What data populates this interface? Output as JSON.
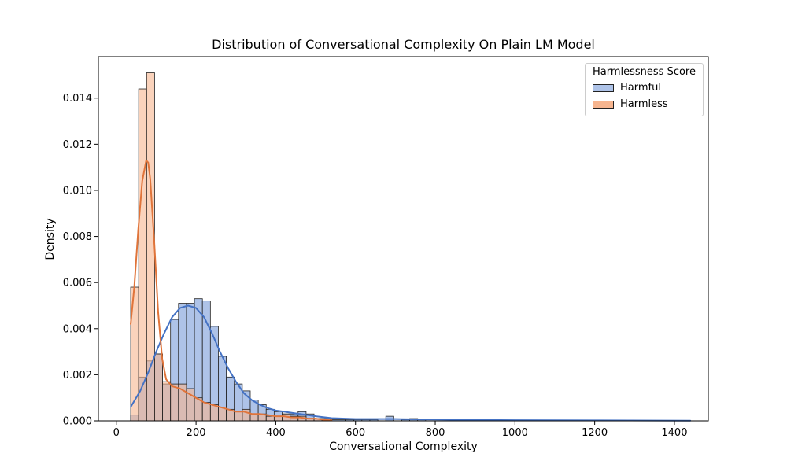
{
  "chart_data": {
    "type": "histogram",
    "title": "Distribution of Conversational Complexity On Plain LM Model",
    "xlabel": "Conversational Complexity",
    "ylabel": "Density",
    "xlim": [
      -45,
      1485
    ],
    "ylim": [
      0,
      0.0158
    ],
    "xticks": [
      0,
      200,
      400,
      600,
      800,
      1000,
      1200,
      1400
    ],
    "yticks": [
      0.0,
      0.002,
      0.004,
      0.006,
      0.008,
      0.01,
      0.012,
      0.014
    ],
    "ytick_labels": [
      "0.000",
      "0.002",
      "0.004",
      "0.006",
      "0.008",
      "0.010",
      "0.012",
      "0.014"
    ],
    "bin_width": 20,
    "bin_start": 36,
    "grid": false,
    "legend": {
      "title": "Harmlessness Score",
      "placement": "top-right"
    },
    "series": [
      {
        "name": "Harmful",
        "color": "#4472c4",
        "fill": "#aec3e8",
        "bins": [
          [
            36,
            0.00025
          ],
          [
            56,
            0.0019
          ],
          [
            76,
            0.0026
          ],
          [
            96,
            0.0029
          ],
          [
            116,
            0.0016
          ],
          [
            136,
            0.0044
          ],
          [
            156,
            0.0051
          ],
          [
            176,
            0.0051
          ],
          [
            196,
            0.0053
          ],
          [
            216,
            0.0052
          ],
          [
            236,
            0.0041
          ],
          [
            256,
            0.0028
          ],
          [
            276,
            0.0019
          ],
          [
            296,
            0.0016
          ],
          [
            316,
            0.0013
          ],
          [
            336,
            0.0009
          ],
          [
            356,
            0.0007
          ],
          [
            376,
            0.0005
          ],
          [
            396,
            0.0004
          ],
          [
            416,
            0.0003
          ],
          [
            436,
            0.0003
          ],
          [
            456,
            0.0004
          ],
          [
            476,
            0.0003
          ],
          [
            496,
            0.0001
          ],
          [
            516,
            0.0001
          ],
          [
            536,
            5e-05
          ],
          [
            556,
            5e-05
          ],
          [
            576,
            5e-05
          ],
          [
            596,
            5e-05
          ],
          [
            616,
            5e-05
          ],
          [
            636,
            5e-05
          ],
          [
            676,
            0.0002
          ],
          [
            716,
            5e-05
          ],
          [
            736,
            0.0001
          ],
          [
            756,
            5e-05
          ]
        ],
        "kde": {
          "x": [
            36,
            60,
            80,
            100,
            120,
            140,
            160,
            180,
            200,
            220,
            240,
            260,
            280,
            300,
            320,
            340,
            360,
            380,
            400,
            420,
            440,
            460,
            480,
            500,
            540,
            600,
            700,
            800,
            900,
            1000,
            1200,
            1440
          ],
          "y": [
            0.0006,
            0.0013,
            0.0021,
            0.003,
            0.0038,
            0.0045,
            0.0049,
            0.005,
            0.0049,
            0.0045,
            0.0038,
            0.003,
            0.0023,
            0.0017,
            0.0012,
            0.0009,
            0.0007,
            0.00055,
            0.00045,
            0.0004,
            0.00035,
            0.0003,
            0.00025,
            0.0002,
            0.00012,
            8e-05,
            8e-05,
            6e-05,
            4e-05,
            3e-05,
            2e-05,
            1e-05
          ]
        }
      },
      {
        "name": "Harmless",
        "color": "#e0743a",
        "fill": "#f7b58f",
        "bins": [
          [
            36,
            0.0058
          ],
          [
            56,
            0.0144
          ],
          [
            76,
            0.0151
          ],
          [
            96,
            0.0029
          ],
          [
            116,
            0.0017
          ],
          [
            136,
            0.0016
          ],
          [
            156,
            0.0016
          ],
          [
            176,
            0.0014
          ],
          [
            196,
            0.001
          ],
          [
            216,
            0.0008
          ],
          [
            236,
            0.0007
          ],
          [
            256,
            0.0006
          ],
          [
            276,
            0.0005
          ],
          [
            296,
            0.0004
          ],
          [
            316,
            0.0005
          ],
          [
            336,
            0.0003
          ],
          [
            356,
            0.0003
          ],
          [
            376,
            0.0002
          ],
          [
            396,
            0.0002
          ],
          [
            416,
            0.0003
          ],
          [
            436,
            0.0002
          ],
          [
            456,
            0.0002
          ],
          [
            476,
            0.0001
          ],
          [
            496,
            0.0001
          ]
        ],
        "kde": {
          "x": [
            36,
            45,
            55,
            65,
            75,
            80,
            85,
            95,
            105,
            115,
            125,
            140,
            160,
            180,
            200,
            220,
            240,
            260,
            280,
            300,
            320,
            340,
            360,
            380,
            400,
            420,
            440,
            460,
            480,
            500,
            520,
            540
          ],
          "y": [
            0.0042,
            0.0058,
            0.0083,
            0.0104,
            0.0113,
            0.0112,
            0.0105,
            0.0078,
            0.0047,
            0.0027,
            0.0018,
            0.0015,
            0.0014,
            0.0012,
            0.001,
            0.0008,
            0.0007,
            0.0006,
            0.0005,
            0.0004,
            0.0004,
            0.0003,
            0.0003,
            0.00025,
            0.0002,
            0.0002,
            0.00015,
            0.00015,
            0.0001,
            0.0001,
            5e-05,
            2e-05
          ]
        }
      }
    ]
  }
}
